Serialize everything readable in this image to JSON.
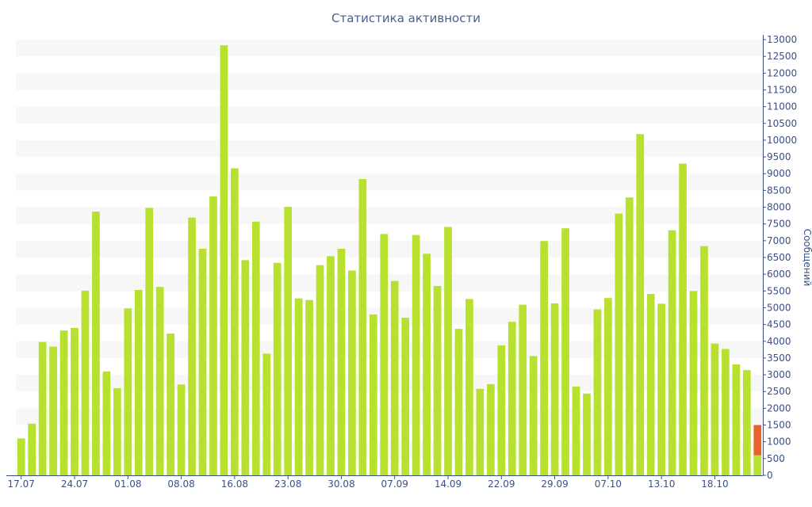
{
  "chart_data": {
    "type": "bar",
    "title": "Статистика активности",
    "ylabel": "Сообщений",
    "xlabel": "",
    "ylim": [
      0,
      13000
    ],
    "y_ticks": [
      0,
      500,
      1000,
      1500,
      2000,
      2500,
      3000,
      3500,
      4000,
      4500,
      5000,
      5500,
      6000,
      6500,
      7000,
      7500,
      8000,
      8500,
      9000,
      9500,
      10000,
      10500,
      11000,
      11500,
      12000,
      12500,
      13000
    ],
    "y_axis_position": "right",
    "grid": "alternating horizontal bands",
    "x_tick_labels": [
      {
        "index": 0,
        "label": "17.07"
      },
      {
        "index": 5,
        "label": "24.07"
      },
      {
        "index": 10,
        "label": "01.08"
      },
      {
        "index": 15,
        "label": "08.08"
      },
      {
        "index": 20,
        "label": "16.08"
      },
      {
        "index": 25,
        "label": "23.08"
      },
      {
        "index": 30,
        "label": "30.08"
      },
      {
        "index": 35,
        "label": "07.09"
      },
      {
        "index": 40,
        "label": "14.09"
      },
      {
        "index": 45,
        "label": "22.09"
      },
      {
        "index": 50,
        "label": "29.09"
      },
      {
        "index": 55,
        "label": "07.10"
      },
      {
        "index": 60,
        "label": "13.10"
      },
      {
        "index": 65,
        "label": "18.10"
      }
    ],
    "values": [
      1100,
      1540,
      3980,
      3840,
      4320,
      4400,
      5510,
      7870,
      3100,
      2600,
      4980,
      5530,
      7980,
      5620,
      4230,
      2710,
      7690,
      6760,
      8320,
      12830,
      9160,
      6420,
      7570,
      3630,
      6340,
      8010,
      5280,
      5230,
      6270,
      6540,
      6760,
      6110,
      8840,
      4800,
      7200,
      5800,
      4700,
      7170,
      6610,
      5650,
      7410,
      4370,
      5260,
      2580,
      2720,
      3880,
      4580,
      5090,
      3560,
      6990,
      5130,
      7370,
      2650,
      2440,
      4950,
      5290,
      7810,
      8290,
      10180,
      5410,
      5120,
      7310,
      9300,
      5500,
      6840,
      3930,
      3770,
      3310,
      3140
    ],
    "current": {
      "value": 1500,
      "overlay_value": 600
    },
    "colors": {
      "bar": "#b8e02e",
      "current": "#e8632a",
      "band": "#f7f7f7",
      "axis": "#3b4f87",
      "title": "#4a5d8f"
    }
  }
}
